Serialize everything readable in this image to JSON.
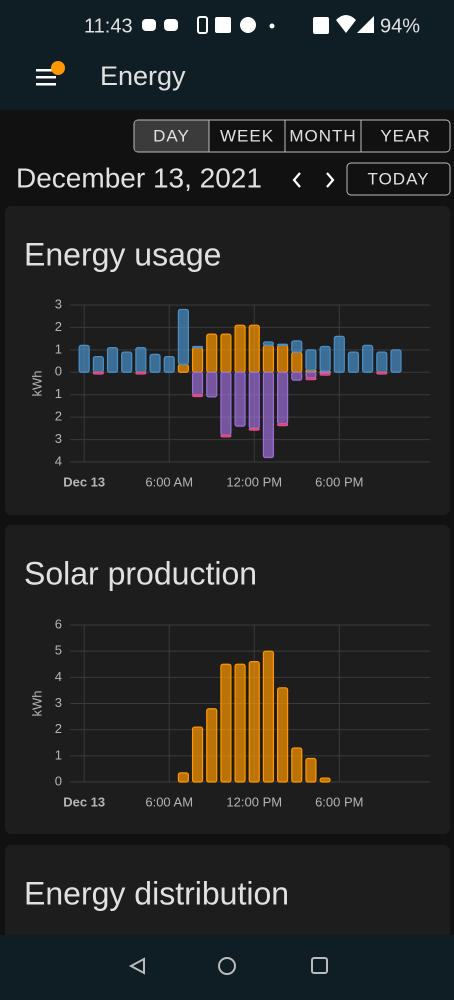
{
  "status_bar": {
    "time": "11:43",
    "battery": "94%"
  },
  "header": {
    "title": "Energy"
  },
  "period_buttons": [
    "DAY",
    "WEEK",
    "MONTH",
    "YEAR"
  ],
  "date": "December 13, 2021",
  "today_button": "TODAY",
  "chart_data": [
    {
      "type": "bar",
      "title": "Energy usage",
      "ylabel": "kWh",
      "stacked": true,
      "x": [
        0,
        1,
        2,
        3,
        4,
        5,
        6,
        7,
        8,
        9,
        10,
        11,
        12,
        13,
        14,
        15,
        16,
        17,
        18,
        19,
        20,
        21,
        22
      ],
      "series": [
        {
          "color": "#ff9800",
          "values": [
            0,
            0,
            0,
            0,
            0,
            0,
            0,
            0.35,
            1.1,
            1.7,
            1.7,
            2.1,
            2.1,
            1.2,
            1.2,
            0.9,
            0.1,
            0.05,
            0,
            0,
            0,
            0,
            0
          ]
        },
        {
          "color": "#4a90c8",
          "values": [
            1.2,
            0.7,
            1.1,
            0.9,
            1.1,
            0.8,
            0.7,
            2.45,
            0.05,
            0,
            0,
            0,
            0,
            0.15,
            0.05,
            0.5,
            0.9,
            1.1,
            1.6,
            0.9,
            1.2,
            0.9,
            1.0
          ]
        },
        {
          "color": "#9b6fd6",
          "values": [
            0,
            0,
            0,
            0,
            0,
            0,
            0,
            0,
            -1.0,
            -1.1,
            -2.8,
            -2.4,
            -2.5,
            -3.8,
            -2.3,
            -0.35,
            -0.25,
            -0.05,
            0,
            0,
            0,
            0,
            0
          ]
        },
        {
          "color": "#e8508a",
          "values": [
            0,
            -0.08,
            0,
            0,
            -0.08,
            0,
            0,
            0,
            -0.08,
            0,
            -0.08,
            0,
            -0.08,
            0,
            -0.08,
            0,
            -0.08,
            -0.08,
            0,
            0,
            0,
            -0.08,
            0
          ]
        }
      ],
      "xlim": [
        -1,
        24.4
      ],
      "xticks": [
        {
          "value": 0,
          "label": "Dec 13"
        },
        {
          "value": 6,
          "label": "6:00 AM"
        },
        {
          "value": 12,
          "label": "12:00 PM"
        },
        {
          "value": 18,
          "label": "6:00 PM"
        }
      ],
      "ylim": [
        -4,
        3
      ],
      "yticks": [
        3,
        2,
        1,
        0,
        {
          "value": -1,
          "label": "1"
        },
        {
          "value": -2,
          "label": "2"
        },
        {
          "value": -3,
          "label": "3"
        },
        {
          "value": -4,
          "label": "4"
        }
      ],
      "grid": true
    },
    {
      "type": "bar",
      "title": "Solar production",
      "ylabel": "kWh",
      "stacked": true,
      "x": [
        7,
        8,
        9,
        10,
        11,
        12,
        13,
        14,
        15,
        16,
        17
      ],
      "series": [
        {
          "color": "#ff9800",
          "values": [
            0.35,
            2.1,
            2.8,
            4.5,
            4.5,
            4.6,
            5.0,
            3.6,
            1.3,
            0.9,
            0.15
          ]
        }
      ],
      "xlim": [
        -1,
        24.4
      ],
      "xticks": [
        {
          "value": 0,
          "label": "Dec 13"
        },
        {
          "value": 6,
          "label": "6:00 AM"
        },
        {
          "value": 12,
          "label": "12:00 PM"
        },
        {
          "value": 18,
          "label": "6:00 PM"
        }
      ],
      "ylim": [
        0,
        6
      ],
      "yticks": [
        0,
        1,
        2,
        3,
        4,
        5,
        6
      ],
      "grid": true
    }
  ],
  "distribution_card": {
    "title": "Energy distribution"
  }
}
